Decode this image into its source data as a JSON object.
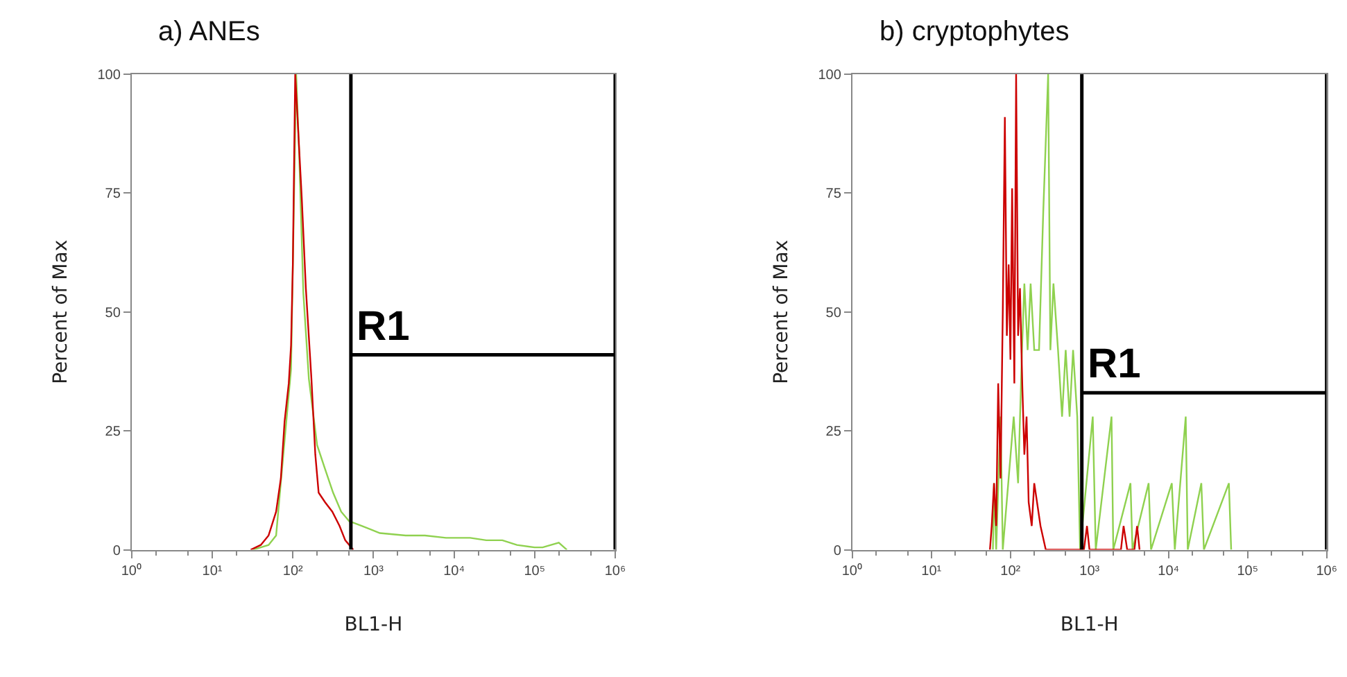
{
  "chart_data": [
    {
      "type": "line",
      "title": "a) ANEs",
      "xlabel": "BL1-H",
      "ylabel": "Percent of Max",
      "log": "x",
      "xlim": [
        1,
        1000000
      ],
      "ylim": [
        0,
        100
      ],
      "xticks": [
        {
          "value": 1,
          "label": "10⁰"
        },
        {
          "value": 10,
          "label": "10¹"
        },
        {
          "value": 100,
          "label": "10²"
        },
        {
          "value": 1000,
          "label": "10³"
        },
        {
          "value": 10000,
          "label": "10⁴"
        },
        {
          "value": 100000,
          "label": "10⁵"
        },
        {
          "value": 1000000,
          "label": "10⁶"
        }
      ],
      "yticks": [
        0,
        25,
        50,
        75,
        100
      ],
      "annotations": [
        "R1"
      ],
      "series": [
        {
          "color": "#8fd14f",
          "x": [
            32,
            50,
            62,
            79,
            95,
            110,
            120,
            135,
            158,
            200,
            251,
            316,
            398,
            501,
            724,
            1200,
            2512,
            4365,
            7943,
            15849,
            25119,
            39811,
            60256,
            100000,
            125893,
            199526,
            251189
          ],
          "values": [
            0,
            1,
            3,
            23,
            38,
            100,
            83,
            54,
            36,
            22,
            17,
            12,
            8,
            6,
            5,
            3.5,
            3,
            3,
            2.5,
            2.5,
            2,
            2,
            1,
            0.5,
            0.5,
            1.5,
            0
          ]
        },
        {
          "color": "#cc0000",
          "x": [
            30,
            40,
            50,
            62,
            71,
            79,
            89,
            95,
            100,
            107,
            115,
            129,
            145,
            170,
            190,
            209,
            251,
            309,
            380,
            447,
            562
          ],
          "values": [
            0,
            1,
            3,
            8,
            15,
            27,
            35,
            43,
            60,
            100,
            90,
            74,
            55,
            36,
            20,
            12,
            10,
            8,
            5,
            2,
            0
          ]
        },
        {
          "color": "#000000",
          "x": [
            525,
            525,
            525,
            1000000,
            1000000,
            1000000
          ],
          "values": [
            0,
            100,
            41,
            41,
            100,
            0
          ]
        }
      ]
    },
    {
      "type": "line",
      "title": "b) cryptophytes",
      "xlabel": "BL1-H",
      "ylabel": "Percent of Max",
      "log": "x",
      "xlim": [
        1,
        1000000
      ],
      "ylim": [
        0,
        100
      ],
      "xticks": [
        {
          "value": 1,
          "label": "10⁰"
        },
        {
          "value": 10,
          "label": "10¹"
        },
        {
          "value": 100,
          "label": "10²"
        },
        {
          "value": 1000,
          "label": "10³"
        },
        {
          "value": 10000,
          "label": "10⁴"
        },
        {
          "value": 100000,
          "label": "10⁵"
        },
        {
          "value": 1000000,
          "label": "10⁶"
        }
      ],
      "yticks": [
        0,
        25,
        50,
        75,
        100
      ],
      "annotations": [
        "R1"
      ],
      "series": [
        {
          "color": "#8fd14f",
          "x": [
            60,
            62,
            66,
            75,
            80,
            110,
            125,
            140,
            150,
            165,
            180,
            200,
            230,
            260,
            300,
            320,
            350,
            400,
            450,
            500,
            560,
            620,
            700,
            760,
            1100,
            1200,
            1900,
            2000,
            3300,
            3500,
            5600,
            6000,
            11000,
            12000,
            16500,
            17500,
            26000,
            28000,
            58000,
            62000
          ],
          "values": [
            0,
            14,
            0,
            28,
            0,
            28,
            14,
            42,
            56,
            42,
            56,
            42,
            42,
            71,
            100,
            42,
            56,
            42,
            28,
            42,
            28,
            42,
            28,
            0,
            28,
            0,
            28,
            0,
            14,
            0,
            14,
            0,
            14,
            0,
            28,
            0,
            14,
            0,
            14,
            0
          ]
        },
        {
          "color": "#cc0000",
          "x": [
            55,
            58,
            62,
            66,
            70,
            75,
            80,
            85,
            90,
            95,
            100,
            105,
            112,
            118,
            125,
            132,
            141,
            150,
            160,
            170,
            186,
            200,
            240,
            280,
            850,
            930,
            1000,
            2500,
            2700,
            3000,
            3700,
            4000,
            4300
          ],
          "values": [
            0,
            5,
            14,
            5,
            35,
            15,
            50,
            91,
            45,
            60,
            40,
            76,
            35,
            100,
            45,
            55,
            35,
            20,
            28,
            10,
            5,
            14,
            5,
            0,
            0,
            5,
            0,
            0,
            5,
            0,
            0,
            5,
            0
          ]
        },
        {
          "color": "#000000",
          "x": [
            800,
            800,
            800,
            1000000,
            1000000,
            1000000
          ],
          "values": [
            0,
            100,
            33,
            33,
            100,
            0
          ]
        }
      ]
    }
  ]
}
